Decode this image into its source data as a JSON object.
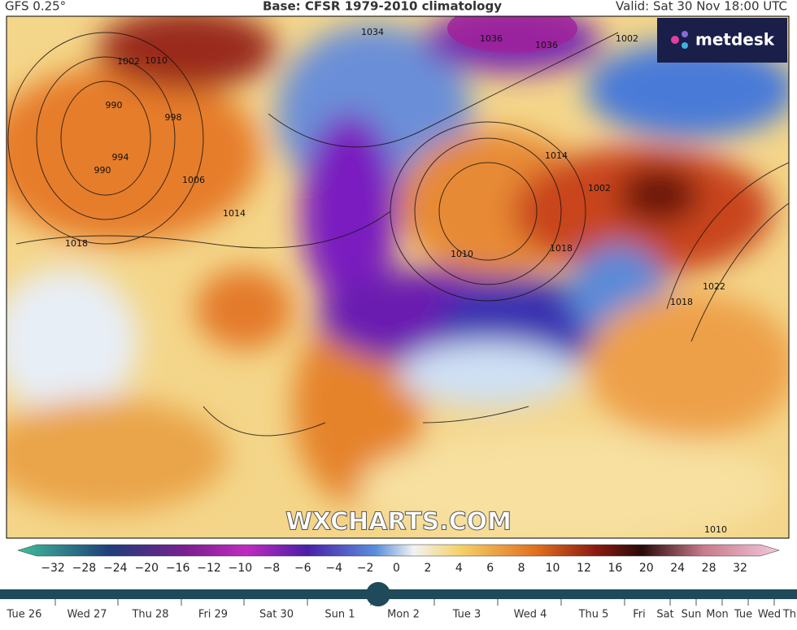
{
  "header": {
    "model": "GFS 0.25°",
    "base": "Base: CFSR 1979-2010 climatology",
    "valid": "Valid: Sat 30 Nov 18:00 UTC"
  },
  "logo": "metdesk",
  "watermark": "WXCHARTS.COM",
  "isobar_labels": [
    "1034",
    "1036",
    "1036",
    "1002",
    "1002",
    "1010",
    "990",
    "998",
    "994",
    "990",
    "1006",
    "1014",
    "1014",
    "1002",
    "1018",
    "1010",
    "1018",
    "1022",
    "1018",
    "1010"
  ],
  "colorbar": {
    "ticks": [
      "−32",
      "−28",
      "−24",
      "−20",
      "−16",
      "−12",
      "−10",
      "−8",
      "−6",
      "−4",
      "−2",
      "0",
      "2",
      "4",
      "6",
      "8",
      "10",
      "12",
      "16",
      "20",
      "24",
      "28",
      "32"
    ]
  },
  "timeline": {
    "days": [
      "Tue 26",
      "Wed 27",
      "Thu 28",
      "Fri 29",
      "Sat 30",
      "Sun 1",
      "Mon 2",
      "Tue 3",
      "Wed 4",
      "Thu 5",
      "Fri",
      "Sat",
      "Sun",
      "Mon",
      "Tue",
      "Wed",
      "Thu"
    ]
  }
}
